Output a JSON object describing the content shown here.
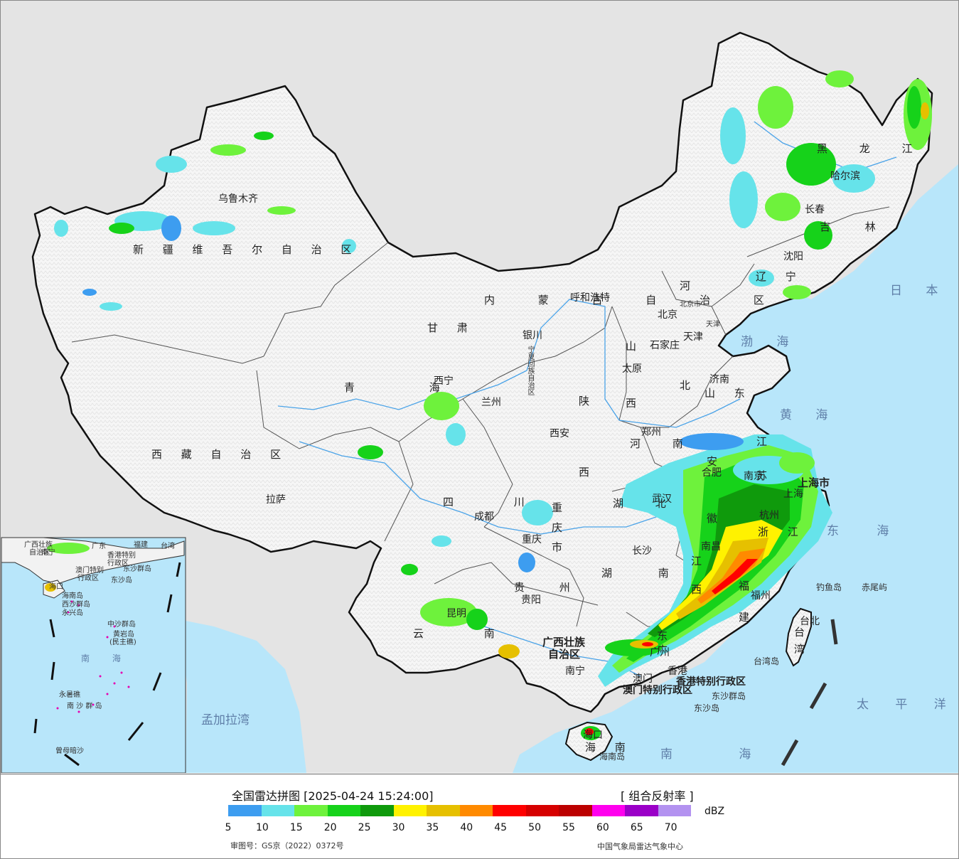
{
  "title": "全国雷达拼图 [2025-04-24 15:24:00]",
  "product": "[ 组合反射率 ]",
  "unit": "dBZ",
  "review_no": "审图号：GS京（2022）0372号",
  "agency": "中国气象局雷达气象中心",
  "scale": {
    "ticks": [
      "5",
      "10",
      "15",
      "20",
      "25",
      "30",
      "35",
      "40",
      "45",
      "50",
      "55",
      "60",
      "65",
      "70"
    ],
    "colors": [
      "#3d9df0",
      "#66e3ea",
      "#6ef23c",
      "#16d21a",
      "#0f9a0c",
      "#fff200",
      "#e6c000",
      "#ff8a00",
      "#ff0000",
      "#d60000",
      "#bc0000",
      "#ff00ee",
      "#9b00c8",
      "#b392f0"
    ]
  },
  "colors": {
    "ocean": "#b8e6fa",
    "land_china": "#f4f4f4",
    "land_other": "#e3e3e3",
    "border": "#111111",
    "river": "#4aa3e8"
  },
  "provinces": [
    {
      "name": "新 疆 维 吾 尔 自 治 区",
      "id": "xinjiang"
    },
    {
      "name": "西 藏 自 治 区",
      "id": "xizang"
    },
    {
      "name": "青 海",
      "id": "qinghai"
    },
    {
      "name": "甘 肃",
      "id": "gansu"
    },
    {
      "name": "内 蒙 古 自 治 区",
      "id": "neimenggu"
    },
    {
      "name": "黑 龙 江",
      "id": "heilongjiang"
    },
    {
      "name": "吉 林",
      "id": "jilin"
    },
    {
      "name": "辽 宁",
      "id": "liaoning"
    },
    {
      "name": "河 北",
      "id": "hebei"
    },
    {
      "name": "山 西",
      "id": "shanxi"
    },
    {
      "name": "山 东",
      "id": "shandong"
    },
    {
      "name": "河 南",
      "id": "henan"
    },
    {
      "name": "陕 西",
      "id": "shaanxi"
    },
    {
      "name": "四 川",
      "id": "sichuan"
    },
    {
      "name": "重 庆 市",
      "id": "chongqing"
    },
    {
      "name": "湖 北",
      "id": "hubei"
    },
    {
      "name": "湖 南",
      "id": "hunan"
    },
    {
      "name": "贵 州",
      "id": "guizhou"
    },
    {
      "name": "云 南",
      "id": "yunnan"
    },
    {
      "name": "广西壮族",
      "id": "guangxi1"
    },
    {
      "name": "自治区",
      "id": "guangxi2"
    },
    {
      "name": "广 东",
      "id": "guangdong"
    },
    {
      "name": "江 西",
      "id": "jiangxi"
    },
    {
      "name": "福 建",
      "id": "fujian"
    },
    {
      "name": "浙 江",
      "id": "zhejiang"
    },
    {
      "name": "江 苏",
      "id": "jiangsu"
    },
    {
      "name": "安 徽",
      "id": "anhui"
    },
    {
      "name": "上海市",
      "id": "shanghai"
    },
    {
      "name": "台 湾",
      "id": "taiwan"
    },
    {
      "name": "海 南",
      "id": "hainan"
    },
    {
      "name": "宁夏回族自治区",
      "id": "ningxia"
    }
  ],
  "cities": [
    {
      "name": "乌鲁木齐",
      "id": "urumqi"
    },
    {
      "name": "拉萨",
      "id": "lhasa"
    },
    {
      "name": "西宁",
      "id": "xining"
    },
    {
      "name": "兰州",
      "id": "lanzhou"
    },
    {
      "name": "银川",
      "id": "yinchuan"
    },
    {
      "name": "呼和浩特",
      "id": "hohhot"
    },
    {
      "name": "哈尔滨",
      "id": "harbin"
    },
    {
      "name": "长春",
      "id": "changchun"
    },
    {
      "name": "沈阳",
      "id": "shenyang"
    },
    {
      "name": "北京",
      "id": "beijing"
    },
    {
      "name": "北京市",
      "id": "beijing2"
    },
    {
      "name": "天津",
      "id": "tianjin"
    },
    {
      "name": "天津",
      "id": "tianjin2"
    },
    {
      "name": "石家庄",
      "id": "shijiazhuang"
    },
    {
      "name": "太原",
      "id": "taiyuan"
    },
    {
      "name": "济南",
      "id": "jinan"
    },
    {
      "name": "郑州",
      "id": "zhengzhou"
    },
    {
      "name": "西安",
      "id": "xian"
    },
    {
      "name": "成都",
      "id": "chengdu"
    },
    {
      "name": "重庆",
      "id": "chongqingc"
    },
    {
      "name": "武汉",
      "id": "wuhan"
    },
    {
      "name": "合肥",
      "id": "hefei"
    },
    {
      "name": "南京",
      "id": "nanjing"
    },
    {
      "name": "上海",
      "id": "shanghaic"
    },
    {
      "name": "杭州",
      "id": "hangzhou"
    },
    {
      "name": "南昌",
      "id": "nanchang"
    },
    {
      "name": "长沙",
      "id": "changsha"
    },
    {
      "name": "贵阳",
      "id": "guiyang"
    },
    {
      "name": "昆明",
      "id": "kunming"
    },
    {
      "name": "南宁",
      "id": "nanning"
    },
    {
      "name": "广州",
      "id": "guangzhou"
    },
    {
      "name": "福州",
      "id": "fuzhou"
    },
    {
      "name": "台北",
      "id": "taipei"
    },
    {
      "name": "海口",
      "id": "haikou"
    },
    {
      "name": "澳门",
      "id": "macau"
    },
    {
      "name": "香港",
      "id": "hongkong"
    },
    {
      "name": "香港特别行政区",
      "id": "hksar"
    },
    {
      "name": "澳门特别行政区",
      "id": "macausar"
    },
    {
      "name": "东沙群岛",
      "id": "dongsha"
    },
    {
      "name": "东沙岛",
      "id": "dongshadao"
    },
    {
      "name": "钓鱼岛",
      "id": "diaoyu"
    },
    {
      "name": "赤尾屿",
      "id": "chiwei"
    },
    {
      "name": "台湾岛",
      "id": "taiwandao"
    },
    {
      "name": "海南岛",
      "id": "hainandao"
    }
  ],
  "seas": [
    {
      "name": "日 本 海",
      "id": "japan-sea"
    },
    {
      "name": "渤 海",
      "id": "bohai"
    },
    {
      "name": "黄 海",
      "id": "yellow-sea"
    },
    {
      "name": "东 海",
      "id": "east-sea"
    },
    {
      "name": "太 平 洋",
      "id": "pacific"
    },
    {
      "name": "南 海",
      "id": "south-sea"
    },
    {
      "name": "孟加拉湾",
      "id": "bengal"
    }
  ],
  "inset": {
    "labels": [
      "广西壮族",
      "自治区",
      "南宁",
      "广东",
      "福建",
      "台湾",
      "香港特别",
      "行政区",
      "澳门特别",
      "行政区",
      "东沙群岛",
      "东沙岛",
      "海口",
      "海南岛",
      "西沙群岛",
      "永兴岛",
      "中沙群岛",
      "黄岩岛",
      "(民主礁)",
      "南 海",
      "永暑礁",
      "南 沙 群 岛",
      "曾母暗沙"
    ]
  }
}
